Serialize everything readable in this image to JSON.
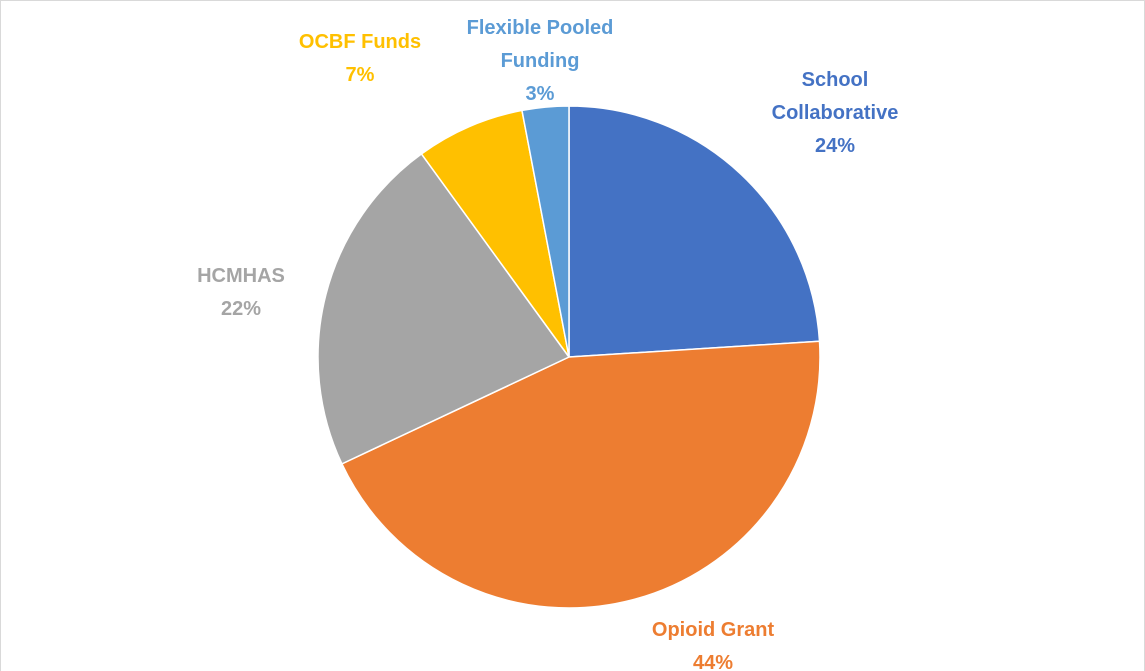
{
  "chart_data": {
    "type": "pie",
    "categories": [
      "School Collaborative",
      "Opioid Grant",
      "HCMHAS",
      "OCBF Funds",
      "Flexible Pooled Funding"
    ],
    "values": [
      24,
      44,
      22,
      7,
      3
    ],
    "value_labels": [
      "24%",
      "44%",
      "22%",
      "7%",
      "3%"
    ],
    "colors": [
      "#4472c4",
      "#ed7d31",
      "#a5a5a5",
      "#ffc000",
      "#5b9bd5"
    ]
  }
}
